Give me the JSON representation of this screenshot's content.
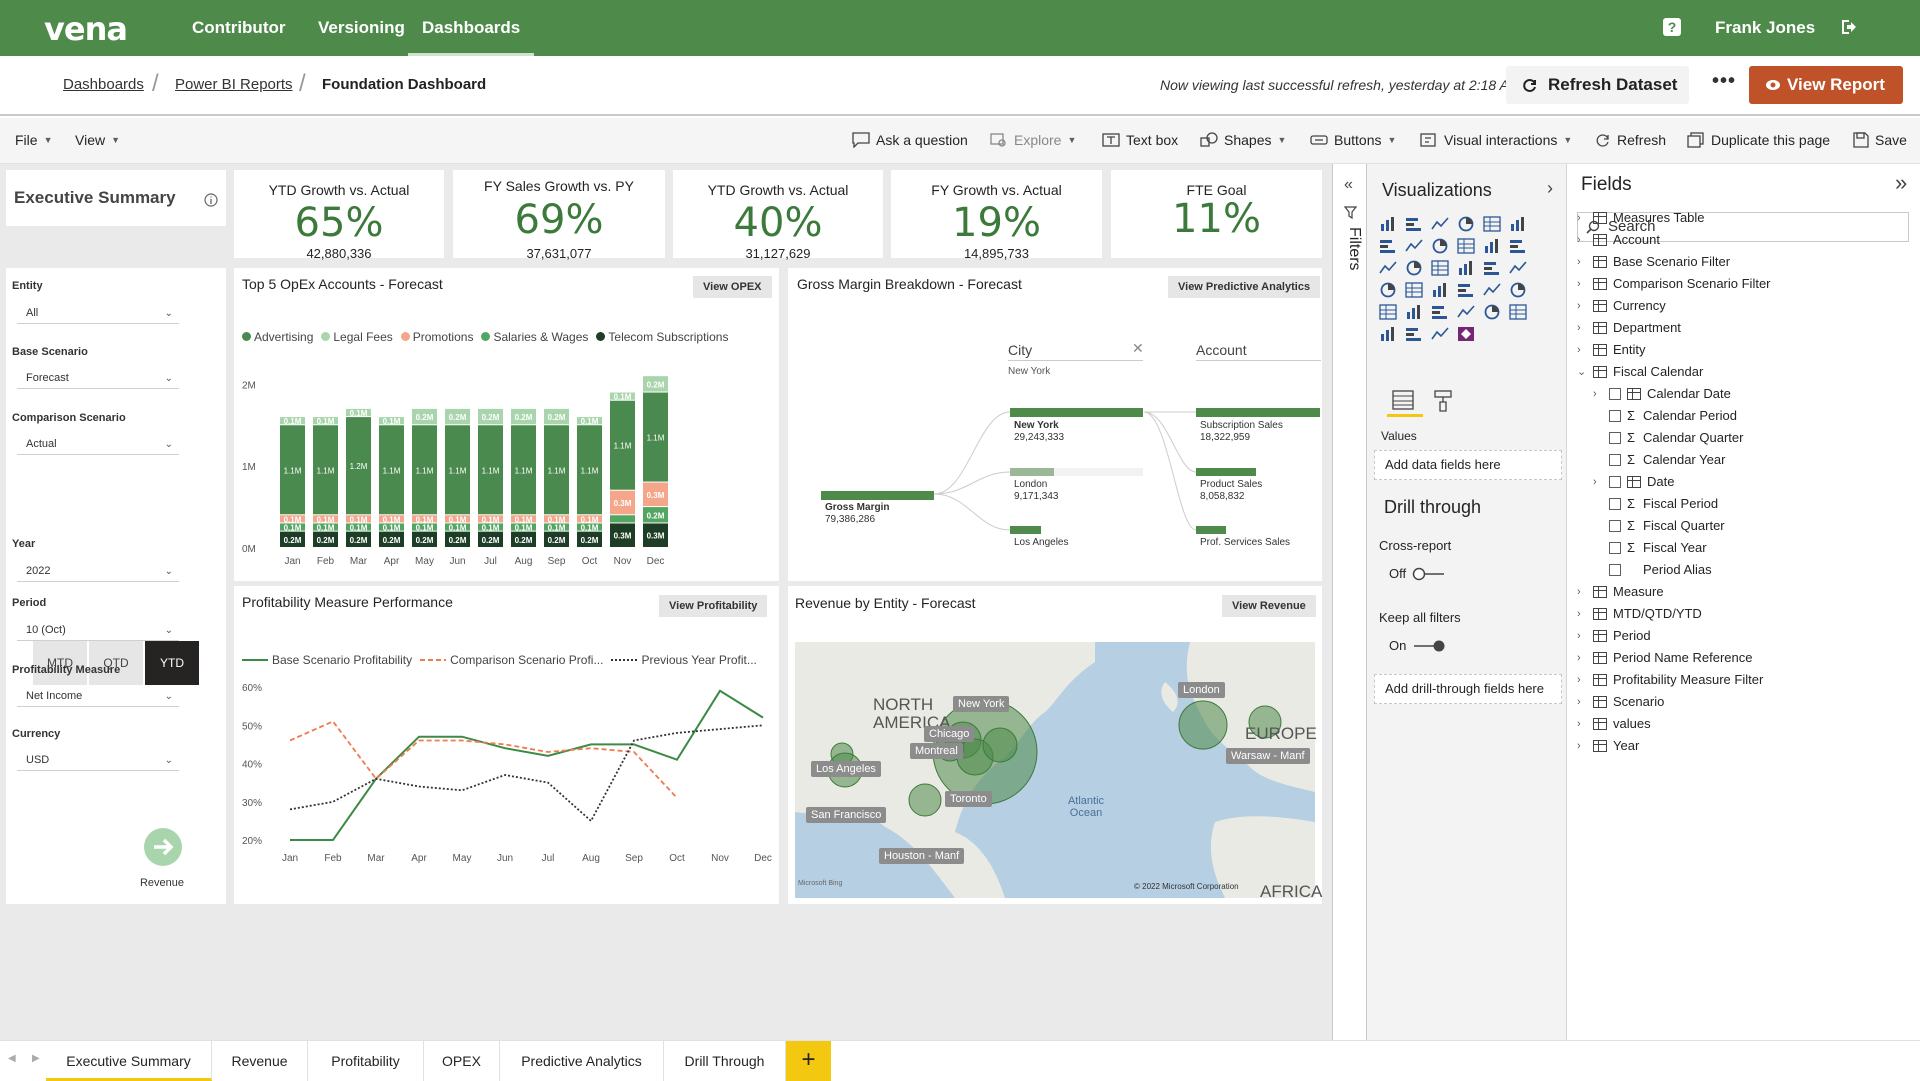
{
  "topnav": {
    "logo": "vena",
    "items": [
      "Contributor",
      "Versioning",
      "Dashboards"
    ],
    "active": "Dashboards",
    "user": "Frank Jones",
    "help": "?"
  },
  "breadcrumb": {
    "items": [
      "Dashboards",
      "Power BI Reports",
      "Foundation Dashboard"
    ],
    "status": "Now viewing last successful refresh, yesterday at 2:18 AM",
    "refresh_label": "Refresh Dataset",
    "more_label": "•••",
    "view_label": "View Report"
  },
  "toolbar": {
    "file": "File",
    "view": "View",
    "ask": "Ask a question",
    "explore": "Explore",
    "textbox": "Text box",
    "shapes": "Shapes",
    "buttons": "Buttons",
    "interactions": "Visual interactions",
    "refresh": "Refresh",
    "duplicate": "Duplicate this page",
    "save": "Save"
  },
  "exec": {
    "title": "Executive Summary"
  },
  "kpis": [
    {
      "title": "YTD Growth vs. Actual",
      "value": "65%",
      "sub": "42,880,336"
    },
    {
      "title": "FY Sales Growth vs. PY",
      "value": "69%",
      "sub": "37,631,077"
    },
    {
      "title": "YTD Growth vs. Actual",
      "value": "40%",
      "sub": "31,127,629"
    },
    {
      "title": "FY Growth vs. Actual",
      "value": "19%",
      "sub": "14,895,733"
    },
    {
      "title": "FTE Goal",
      "value": "11%",
      "sub": ""
    }
  ],
  "filters": {
    "entity_label": "Entity",
    "entity": "All",
    "base_label": "Base Scenario",
    "base": "Forecast",
    "comp_label": "Comparison Scenario",
    "comp": "Actual",
    "segments": [
      "MTD",
      "QTD",
      "YTD"
    ],
    "segment_selected": "YTD",
    "year_label": "Year",
    "year": "2022",
    "period_label": "Period",
    "period": "10 (Oct)",
    "measure_label": "Profitability Measure",
    "measure": "Net Income",
    "currency_label": "Currency",
    "currency": "USD",
    "nav_label": "Revenue"
  },
  "opex": {
    "title": "Top 5 OpEx Accounts -  Forecast",
    "button": "View OPEX",
    "legend": [
      "Advertising",
      "Legal Fees",
      "Promotions",
      "Salaries & Wages",
      "Telecom Subscriptions"
    ]
  },
  "gross_margin": {
    "title": "Gross Margin Breakdown -  Forecast",
    "button": "View Predictive Analytics",
    "city_header": "City",
    "city_filter": "New York",
    "account_header": "Account",
    "root_label": "Gross Margin",
    "root_value": "79,386,286",
    "cities": [
      {
        "name": "New York",
        "value": "29,243,333"
      },
      {
        "name": "London",
        "value": "9,171,343"
      },
      {
        "name": "Los Angeles",
        "value": ""
      }
    ],
    "accounts": [
      {
        "name": "Subscription Sales",
        "value": "18,322,959"
      },
      {
        "name": "Product Sales",
        "value": "8,058,832"
      },
      {
        "name": "Prof. Services Sales",
        "value": ""
      }
    ]
  },
  "profit": {
    "title": "Profitability Measure Performance",
    "button": "View Profitability",
    "legend": [
      "Base Scenario Profitability",
      "Comparison Scenario Profi...",
      "Previous Year Profit..."
    ]
  },
  "revenue": {
    "title": "Revenue by Entity -  Forecast",
    "button": "View Revenue",
    "map_labels": {
      "na": "NORTH AMERICA",
      "eu": "EUROPE",
      "af": "AFRICA",
      "ocean": "Atlantic Ocean"
    },
    "cities": [
      "New York",
      "Chicago",
      "Montreal",
      "Toronto",
      "Los Angeles",
      "San Francisco",
      "Houston - Manf",
      "London",
      "Warsaw - Manf"
    ],
    "attribution": "© 2022 Microsoft Corporation",
    "bing": "Microsoft Bing"
  },
  "viz": {
    "filters_label": "Filters",
    "title": "Visualizations",
    "values_label": "Values",
    "values_drop": "Add data fields here",
    "drill_title": "Drill through",
    "cross_report": "Cross-report",
    "cross_state": "Off",
    "keep_filters": "Keep all filters",
    "keep_state": "On",
    "drill_drop": "Add drill-through fields here"
  },
  "fields": {
    "title": "Fields",
    "search_placeholder": "Search",
    "items": [
      {
        "label": "Measures Table",
        "kind": "table",
        "level": 0,
        "expander": "›"
      },
      {
        "label": "Account",
        "kind": "table",
        "level": 0,
        "expander": "›"
      },
      {
        "label": "Base Scenario Filter",
        "kind": "table",
        "level": 0,
        "expander": "›"
      },
      {
        "label": "Comparison Scenario Filter",
        "kind": "table",
        "level": 0,
        "expander": "›"
      },
      {
        "label": "Currency",
        "kind": "table",
        "level": 0,
        "expander": "›"
      },
      {
        "label": "Department",
        "kind": "table",
        "level": 0,
        "expander": "›"
      },
      {
        "label": "Entity",
        "kind": "table",
        "level": 0,
        "expander": "›"
      },
      {
        "label": "Fiscal Calendar",
        "kind": "table",
        "level": 0,
        "expander": "⌄"
      },
      {
        "label": "Calendar Date",
        "kind": "date",
        "level": 1,
        "expander": "›"
      },
      {
        "label": "Calendar Period",
        "kind": "sum",
        "level": 1,
        "expander": ""
      },
      {
        "label": "Calendar Quarter",
        "kind": "sum",
        "level": 1,
        "expander": ""
      },
      {
        "label": "Calendar Year",
        "kind": "sum",
        "level": 1,
        "expander": ""
      },
      {
        "label": "Date",
        "kind": "date",
        "level": 1,
        "expander": "›"
      },
      {
        "label": "Fiscal Period",
        "kind": "sum",
        "level": 1,
        "expander": ""
      },
      {
        "label": "Fiscal Quarter",
        "kind": "sum",
        "level": 1,
        "expander": ""
      },
      {
        "label": "Fiscal Year",
        "kind": "sum",
        "level": 1,
        "expander": ""
      },
      {
        "label": "Period Alias",
        "kind": "plain",
        "level": 1,
        "expander": ""
      },
      {
        "label": "Measure",
        "kind": "table",
        "level": 0,
        "expander": "›"
      },
      {
        "label": "MTD/QTD/YTD",
        "kind": "table",
        "level": 0,
        "expander": "›"
      },
      {
        "label": "Period",
        "kind": "table",
        "level": 0,
        "expander": "›"
      },
      {
        "label": "Period Name Reference",
        "kind": "table",
        "level": 0,
        "expander": "›"
      },
      {
        "label": "Profitability Measure Filter",
        "kind": "table",
        "level": 0,
        "expander": "›"
      },
      {
        "label": "Scenario",
        "kind": "table",
        "level": 0,
        "expander": "›"
      },
      {
        "label": "values",
        "kind": "table",
        "level": 0,
        "expander": "›"
      },
      {
        "label": "Year",
        "kind": "table",
        "level": 0,
        "expander": "›"
      }
    ]
  },
  "tabs": {
    "items": [
      "Executive Summary",
      "Revenue",
      "Profitability",
      "OPEX",
      "Predictive Analytics",
      "Drill Through"
    ],
    "active": "Executive Summary",
    "add": "+"
  },
  "colors": {
    "brand": "#4e8b4a",
    "advertising": "#4a8a4f",
    "legal": "#a8d5ac",
    "promotions": "#f4a58a",
    "salaries": "#53a662",
    "telecom": "#1e3d26",
    "kpi": "#3b7a3b",
    "action": "#c0522a",
    "tab_accent": "#f2c811"
  },
  "chart_data": [
    {
      "type": "bar",
      "title": "Top 5 OpEx Accounts -  Forecast",
      "stacked": true,
      "categories": [
        "Jan",
        "Feb",
        "Mar",
        "Apr",
        "May",
        "Jun",
        "Jul",
        "Aug",
        "Sep",
        "Oct",
        "Nov",
        "Dec"
      ],
      "yticks": [
        "0M",
        "1M",
        "2M"
      ],
      "ylim": [
        0,
        2.2
      ],
      "series": [
        {
          "name": "Telecom Subscriptions",
          "values": [
            0.2,
            0.2,
            0.2,
            0.2,
            0.2,
            0.2,
            0.2,
            0.2,
            0.2,
            0.2,
            0.3,
            0.3
          ],
          "labels": [
            "0.2M",
            "0.2M",
            "0.2M",
            "0.2M",
            "0.2M",
            "0.2M",
            "0.2M",
            "0.2M",
            "0.2M",
            "0.2M",
            "0.3M",
            "0.3M"
          ]
        },
        {
          "name": "Salaries & Wages",
          "values": [
            0.1,
            0.1,
            0.1,
            0.1,
            0.1,
            0.1,
            0.1,
            0.1,
            0.1,
            0.1,
            0.1,
            0.2
          ],
          "labels": [
            "0.1M",
            "0.1M",
            "0.1M",
            "0.1M",
            "0.1M",
            "0.1M",
            "0.1M",
            "0.1M",
            "0.1M",
            "0.1M",
            "",
            "0.2M"
          ]
        },
        {
          "name": "Promotions",
          "values": [
            0.1,
            0.1,
            0.1,
            0.1,
            0.1,
            0.1,
            0.1,
            0.1,
            0.1,
            0.1,
            0.3,
            0.3
          ],
          "labels": [
            "0.1M",
            "0.1M",
            "0.1M",
            "0.1M",
            "0.1M",
            "0.1M",
            "0.1M",
            "0.1M",
            "0.1M",
            "0.1M",
            "0.3M",
            "0.3M"
          ]
        },
        {
          "name": "Advertising",
          "values": [
            1.1,
            1.1,
            1.2,
            1.1,
            1.1,
            1.1,
            1.1,
            1.1,
            1.1,
            1.1,
            1.1,
            1.1
          ],
          "labels": [
            "1.1M",
            "1.1M",
            "1.2M",
            "1.1M",
            "1.1M",
            "1.1M",
            "1.1M",
            "1.1M",
            "1.1M",
            "1.1M",
            "1.1M",
            "1.1M"
          ]
        },
        {
          "name": "Legal Fees",
          "values": [
            0.1,
            0.1,
            0.1,
            0.1,
            0.2,
            0.2,
            0.2,
            0.2,
            0.2,
            0.1,
            0.1,
            0.2
          ],
          "labels": [
            "0.1M",
            "0.1M",
            "0.1M",
            "0.1M",
            "0.2M",
            "0.2M",
            "0.2M",
            "0.2M",
            "0.2M",
            "0.1M",
            "0.1M",
            "0.2M"
          ]
        }
      ]
    },
    {
      "type": "line",
      "title": "Profitability Measure Performance",
      "categories": [
        "Jan",
        "Feb",
        "Mar",
        "Apr",
        "May",
        "Jun",
        "Jul",
        "Aug",
        "Sep",
        "Oct",
        "Nov",
        "Dec"
      ],
      "yticks": [
        "20%",
        "30%",
        "40%",
        "50%",
        "60%"
      ],
      "ylim": [
        20,
        60
      ],
      "series": [
        {
          "name": "Base Scenario Profitability",
          "values": [
            20,
            20,
            36,
            47,
            47,
            44,
            42,
            45,
            45,
            41,
            59,
            52
          ]
        },
        {
          "name": "Comparison Scenario Profi...",
          "values": [
            46,
            51,
            36,
            46,
            46,
            45,
            43,
            44,
            43,
            31,
            null,
            null
          ]
        },
        {
          "name": "Previous Year Profit...",
          "values": [
            28,
            30,
            36,
            34,
            33,
            37,
            35,
            25,
            46,
            48,
            49,
            50
          ]
        }
      ]
    }
  ]
}
